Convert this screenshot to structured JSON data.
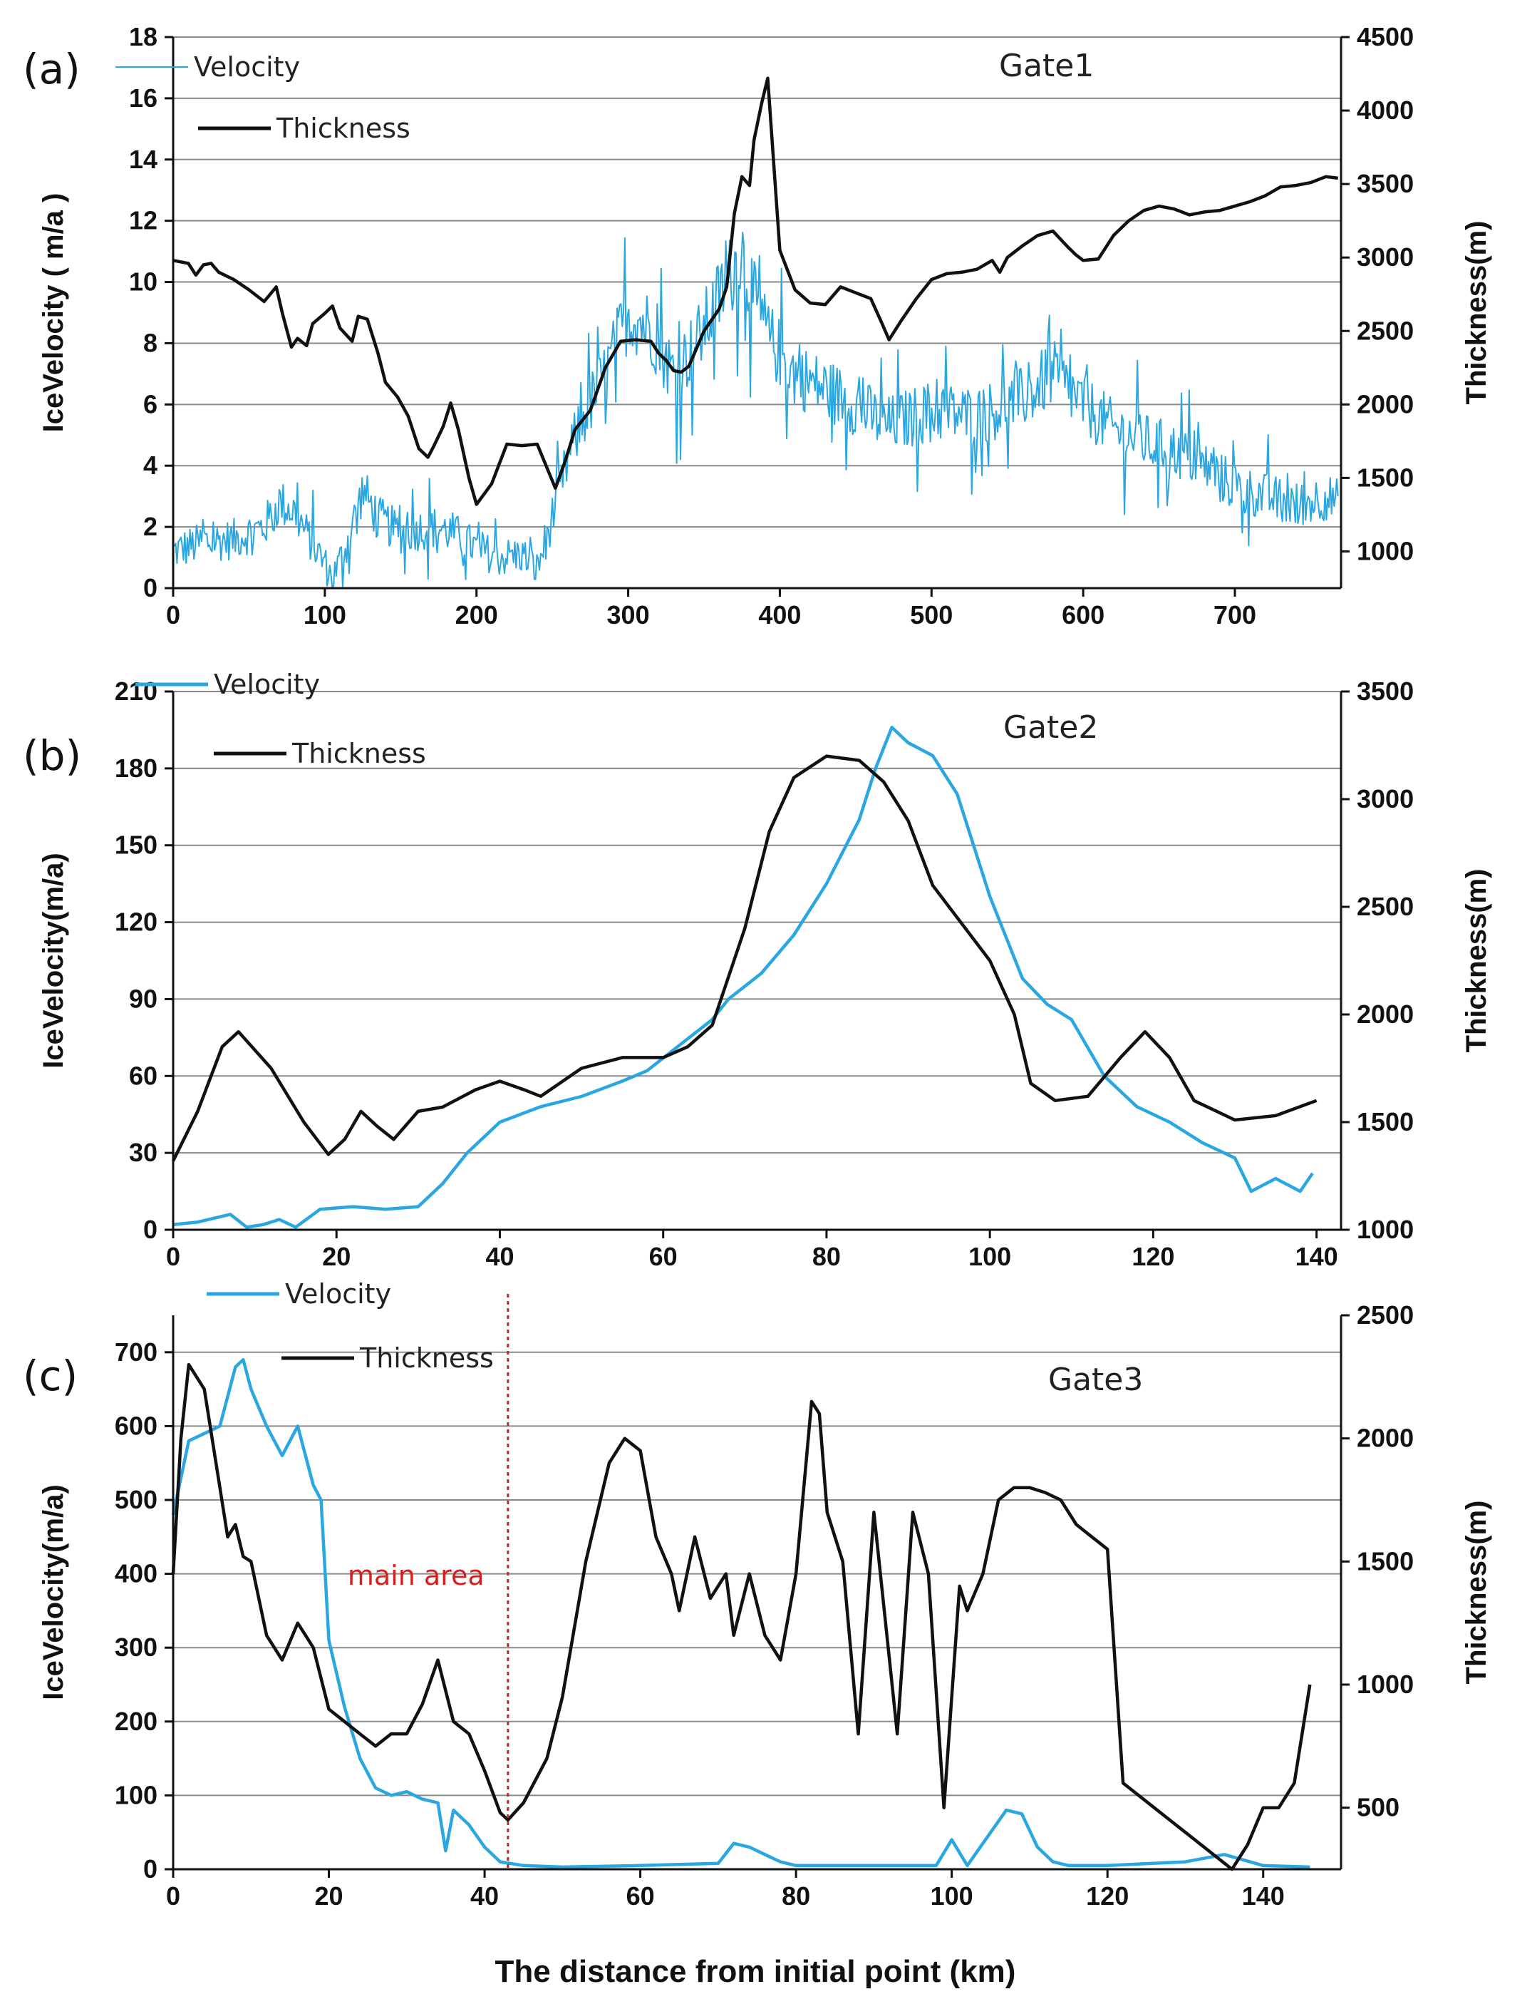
{
  "figure": {
    "xlabel": "The distance from initial point (km)"
  },
  "chart_data": [
    {
      "type": "line",
      "panel_label": "(a)",
      "gate_label": "Gate1",
      "xlim": [
        0,
        770
      ],
      "x_ticks": [
        0,
        100,
        200,
        300,
        400,
        500,
        600,
        700
      ],
      "ylabel_left": "IceVelocity ( m/a )",
      "ylim_left": [
        0,
        18
      ],
      "y_ticks_left": [
        0,
        2,
        4,
        6,
        8,
        10,
        12,
        14,
        16,
        18
      ],
      "ylabel_right": "Thickness(m)",
      "ylim_right": [
        750,
        4500
      ],
      "y_ticks_right": [
        1000,
        1500,
        2000,
        2500,
        3000,
        3500,
        4000,
        4500
      ],
      "grid": true,
      "legend_position": "top-left",
      "noisy_velocity": true,
      "series": [
        {
          "name": "Velocity",
          "axis": "left",
          "color": "#2aa7e0",
          "x": [
            0,
            20,
            40,
            60,
            70,
            80,
            90,
            100,
            105,
            115,
            125,
            135,
            150,
            170,
            185,
            200,
            215,
            230,
            240,
            248,
            255,
            262,
            270,
            285,
            300,
            315,
            330,
            345,
            355,
            365,
            375,
            385,
            395,
            410,
            430,
            450,
            470,
            500,
            530,
            560,
            580,
            600,
            620,
            640,
            660,
            680,
            700,
            720,
            740,
            760,
            768
          ],
          "values": [
            1.2,
            1.5,
            1.6,
            2.0,
            2.8,
            2.5,
            1.6,
            0.8,
            0.3,
            1.5,
            3.2,
            2.3,
            1.8,
            2.0,
            1.8,
            1.3,
            1.0,
            1.1,
            0.6,
            2.0,
            3.2,
            4.5,
            5.5,
            7.0,
            9.0,
            8.5,
            7.0,
            8.0,
            9.0,
            10.0,
            11.0,
            9.0,
            8.0,
            7.0,
            6.5,
            6.0,
            5.3,
            5.8,
            5.6,
            6.2,
            7.0,
            6.0,
            5.2,
            4.8,
            4.5,
            4.0,
            3.3,
            3.0,
            2.7,
            3.0,
            2.8
          ]
        },
        {
          "name": "Thickness",
          "axis": "right",
          "color": "#111111",
          "x": [
            0,
            10,
            15,
            20,
            25,
            30,
            40,
            50,
            60,
            68,
            72,
            78,
            82,
            88,
            92,
            100,
            105,
            110,
            118,
            122,
            128,
            135,
            140,
            148,
            155,
            162,
            168,
            172,
            178,
            183,
            188,
            195,
            200,
            210,
            220,
            230,
            240,
            248,
            252,
            258,
            265,
            275,
            285,
            295,
            305,
            315,
            320,
            325,
            330,
            335,
            340,
            350,
            360,
            365,
            370,
            375,
            380,
            383,
            388,
            392,
            400,
            410,
            420,
            430,
            440,
            450,
            460,
            467,
            472,
            480,
            490,
            500,
            510,
            520,
            530,
            540,
            545,
            550,
            560,
            570,
            580,
            590,
            595,
            600,
            610,
            620,
            630,
            640,
            650,
            660,
            670,
            680,
            690,
            700,
            710,
            720,
            730,
            740,
            750,
            760,
            768
          ],
          "values": [
            2980,
            2960,
            2880,
            2950,
            2960,
            2900,
            2850,
            2780,
            2700,
            2800,
            2620,
            2390,
            2450,
            2400,
            2550,
            2620,
            2670,
            2520,
            2430,
            2600,
            2580,
            2350,
            2150,
            2050,
            1920,
            1700,
            1640,
            1720,
            1850,
            2010,
            1830,
            1500,
            1320,
            1460,
            1730,
            1720,
            1730,
            1530,
            1430,
            1600,
            1830,
            1960,
            2250,
            2430,
            2440,
            2430,
            2350,
            2300,
            2230,
            2220,
            2260,
            2500,
            2650,
            2800,
            3300,
            3550,
            3490,
            3800,
            4050,
            4220,
            3050,
            2780,
            2690,
            2680,
            2800,
            2760,
            2720,
            2560,
            2440,
            2570,
            2720,
            2850,
            2890,
            2900,
            2920,
            2980,
            2900,
            3000,
            3080,
            3150,
            3180,
            3070,
            3020,
            2980,
            2990,
            3150,
            3250,
            3320,
            3350,
            3330,
            3290,
            3310,
            3320,
            3350,
            3380,
            3420,
            3480,
            3490,
            3510,
            3550,
            3540
          ]
        }
      ]
    },
    {
      "type": "line",
      "panel_label": "(b)",
      "gate_label": "Gate2",
      "xlim": [
        0,
        143
      ],
      "x_ticks": [
        0,
        20,
        40,
        60,
        80,
        100,
        120,
        140
      ],
      "ylabel_left": "IceVelocity(m/a)",
      "ylim_left": [
        0,
        210
      ],
      "y_ticks_left": [
        0,
        30,
        60,
        90,
        120,
        150,
        180,
        210
      ],
      "ylabel_right": "Thickness(m)",
      "ylim_right": [
        1000,
        3500
      ],
      "y_ticks_right": [
        1000,
        1500,
        2000,
        2500,
        3000,
        3500
      ],
      "grid": true,
      "legend_position": "top-left",
      "series": [
        {
          "name": "Velocity",
          "axis": "left",
          "color": "#2aa7e0",
          "x": [
            0,
            3,
            7,
            9,
            11,
            13,
            15,
            18,
            22,
            26,
            30,
            33,
            36,
            40,
            45,
            50,
            55,
            58,
            62,
            66,
            68,
            72,
            76,
            80,
            84,
            86,
            88,
            90,
            93,
            96,
            100,
            104,
            107,
            110,
            114,
            118,
            122,
            126,
            130,
            132,
            135,
            138,
            139.5
          ],
          "values": [
            2,
            3,
            6,
            1,
            2,
            4,
            1,
            8,
            9,
            8,
            9,
            18,
            30,
            42,
            48,
            52,
            58,
            62,
            72,
            82,
            90,
            100,
            115,
            135,
            160,
            180,
            196,
            190,
            185,
            170,
            130,
            98,
            88,
            82,
            60,
            48,
            42,
            34,
            28,
            15,
            20,
            15,
            22
          ]
        },
        {
          "name": "Thickness",
          "axis": "right",
          "color": "#111111",
          "x": [
            0,
            3,
            6,
            8,
            12,
            16,
            19,
            21,
            23,
            25,
            27,
            30,
            33,
            37,
            40,
            43,
            45,
            50,
            55,
            60,
            63,
            66,
            70,
            73,
            76,
            80,
            84,
            87,
            90,
            93,
            95,
            100,
            103,
            105,
            108,
            112,
            116,
            119,
            122,
            125,
            130,
            135,
            140
          ],
          "values": [
            1320,
            1550,
            1850,
            1920,
            1750,
            1500,
            1350,
            1420,
            1550,
            1480,
            1420,
            1550,
            1570,
            1650,
            1690,
            1650,
            1620,
            1750,
            1800,
            1800,
            1850,
            1950,
            2400,
            2850,
            3100,
            3200,
            3180,
            3080,
            2900,
            2600,
            2500,
            2250,
            2000,
            1680,
            1600,
            1620,
            1800,
            1920,
            1800,
            1600,
            1510,
            1530,
            1600
          ]
        }
      ]
    },
    {
      "type": "line",
      "panel_label": "(c)",
      "gate_label": "Gate3",
      "annotation": "main area",
      "annotation_x": 43,
      "xlim": [
        0,
        150
      ],
      "x_ticks": [
        0,
        20,
        40,
        60,
        80,
        100,
        120,
        140
      ],
      "ylabel_left": "IceVelocity(m/a)",
      "ylim_left": [
        0,
        750
      ],
      "y_ticks_left": [
        0,
        100,
        200,
        300,
        400,
        500,
        600,
        700
      ],
      "ylabel_right": "Thickness(m)",
      "ylim_right": [
        250,
        2500
      ],
      "y_ticks_right": [
        500,
        1000,
        1500,
        2000,
        2500
      ],
      "grid": true,
      "legend_position": "top-left",
      "series": [
        {
          "name": "Velocity",
          "axis": "left",
          "color": "#2aa7e0",
          "x": [
            0,
            2,
            4,
            6,
            8,
            9,
            10,
            12,
            14,
            16,
            18,
            19,
            20,
            22,
            24,
            26,
            28,
            30,
            32,
            34,
            35,
            36,
            38,
            40,
            42,
            45,
            50,
            60,
            70,
            72,
            74,
            76,
            78,
            80,
            90,
            98,
            100,
            102,
            105,
            107,
            109,
            111,
            113,
            115,
            120,
            130,
            135,
            140,
            146
          ],
          "values": [
            480,
            580,
            590,
            600,
            680,
            690,
            650,
            600,
            560,
            600,
            520,
            500,
            310,
            220,
            150,
            110,
            100,
            105,
            95,
            90,
            25,
            80,
            60,
            30,
            10,
            5,
            3,
            5,
            8,
            35,
            30,
            20,
            10,
            5,
            5,
            5,
            40,
            5,
            50,
            80,
            75,
            30,
            10,
            5,
            5,
            10,
            20,
            5,
            3
          ]
        },
        {
          "name": "Thickness",
          "axis": "right",
          "color": "#111111",
          "x": [
            0,
            1,
            2,
            4,
            6,
            7,
            8,
            9,
            10,
            12,
            14,
            16,
            17,
            18,
            20,
            22,
            24,
            26,
            28,
            30,
            32,
            34,
            36,
            38,
            40,
            42,
            43,
            45,
            48,
            50,
            53,
            56,
            58,
            60,
            62,
            64,
            65,
            67,
            69,
            71,
            72,
            74,
            76,
            78,
            80,
            82,
            83,
            84,
            86,
            88,
            90,
            92,
            93,
            95,
            97,
            99,
            101,
            102,
            104,
            106,
            108,
            110,
            112,
            114,
            116,
            118,
            120,
            122,
            126,
            130,
            136,
            138,
            140,
            142,
            144,
            146
          ],
          "values": [
            1450,
            2000,
            2300,
            2200,
            1800,
            1600,
            1650,
            1520,
            1500,
            1200,
            1100,
            1250,
            1200,
            1150,
            900,
            850,
            800,
            750,
            800,
            800,
            920,
            1100,
            850,
            800,
            650,
            480,
            450,
            520,
            700,
            950,
            1500,
            1900,
            2000,
            1950,
            1600,
            1450,
            1300,
            1600,
            1350,
            1450,
            1200,
            1450,
            1200,
            1100,
            1450,
            2150,
            2100,
            1700,
            1500,
            800,
            1700,
            1100,
            800,
            1700,
            1450,
            500,
            1400,
            1300,
            1450,
            1750,
            1800,
            1800,
            1780,
            1750,
            1650,
            1600,
            1550,
            600,
            500,
            400,
            250,
            350,
            500,
            500,
            600,
            1000
          ]
        }
      ]
    }
  ]
}
